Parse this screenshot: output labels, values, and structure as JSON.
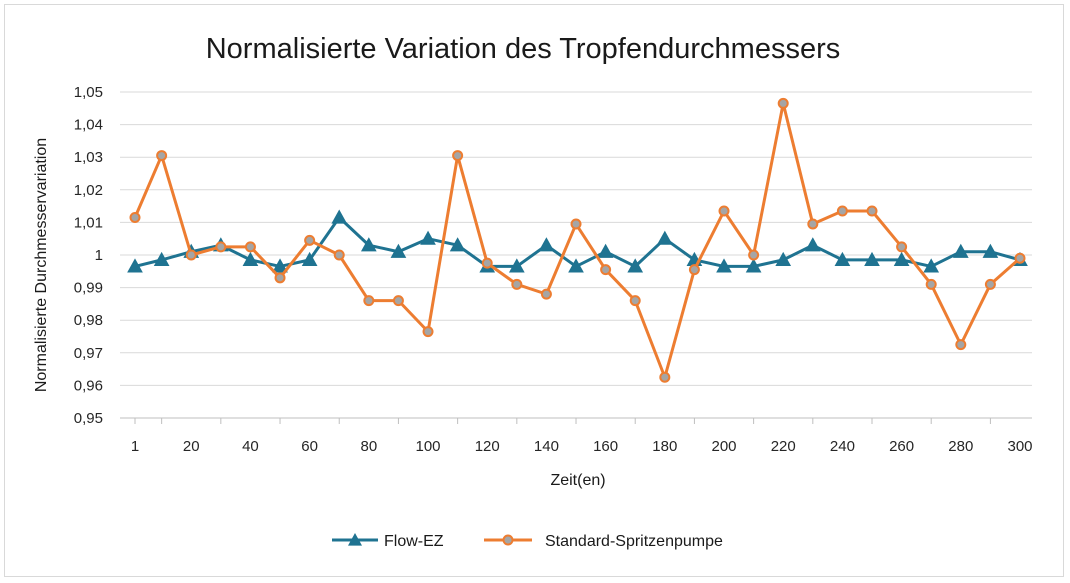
{
  "chart_data": {
    "type": "line",
    "title": "Normalisierte Variation des Tropfendurchmessers",
    "xlabel": "Zeit(en)",
    "ylabel": "Normalisierte Durchmesservariation",
    "x": [
      1,
      10,
      20,
      30,
      40,
      50,
      60,
      70,
      80,
      90,
      100,
      110,
      120,
      130,
      140,
      150,
      160,
      170,
      180,
      190,
      200,
      210,
      220,
      230,
      240,
      250,
      260,
      270,
      280,
      290,
      300
    ],
    "x_ticks": [
      "1",
      "20",
      "40",
      "60",
      "80",
      "100",
      "120",
      "140",
      "160",
      "180",
      "200",
      "220",
      "240",
      "260",
      "280",
      "300"
    ],
    "y_ticks": [
      "0,95",
      "0,96",
      "0,97",
      "0,98",
      "0,99",
      "1",
      "1,01",
      "1,02",
      "1,03",
      "1,04",
      "1,05"
    ],
    "ylim": [
      0.95,
      1.05
    ],
    "grid": true,
    "legend_position": "bottom",
    "series": [
      {
        "name": "Flow-EZ",
        "color": "#1f7391",
        "marker": "triangle",
        "values": [
          0.9965,
          0.9985,
          1.001,
          1.003,
          0.9985,
          0.9965,
          0.9985,
          1.0115,
          1.003,
          1.001,
          1.005,
          1.003,
          0.9965,
          0.9965,
          1.003,
          0.9965,
          1.001,
          0.9965,
          1.005,
          0.9985,
          0.9965,
          0.9965,
          0.9985,
          1.003,
          0.9985,
          0.9985,
          0.9985,
          0.9965,
          1.001,
          1.001,
          0.9985
        ]
      },
      {
        "name": "Standard-Spritzenpumpe",
        "color": "#ed7d31",
        "marker": "circle",
        "values": [
          1.0115,
          1.0305,
          1.0,
          1.0025,
          1.0025,
          0.993,
          1.0045,
          1.0,
          0.986,
          0.986,
          0.9765,
          1.0305,
          0.9975,
          0.991,
          0.988,
          1.0095,
          0.9955,
          0.986,
          0.9625,
          0.9955,
          1.0135,
          1.0,
          1.0465,
          1.0095,
          1.0135,
          1.0135,
          1.0025,
          0.991,
          0.9725,
          0.991,
          0.999
        ]
      }
    ]
  }
}
